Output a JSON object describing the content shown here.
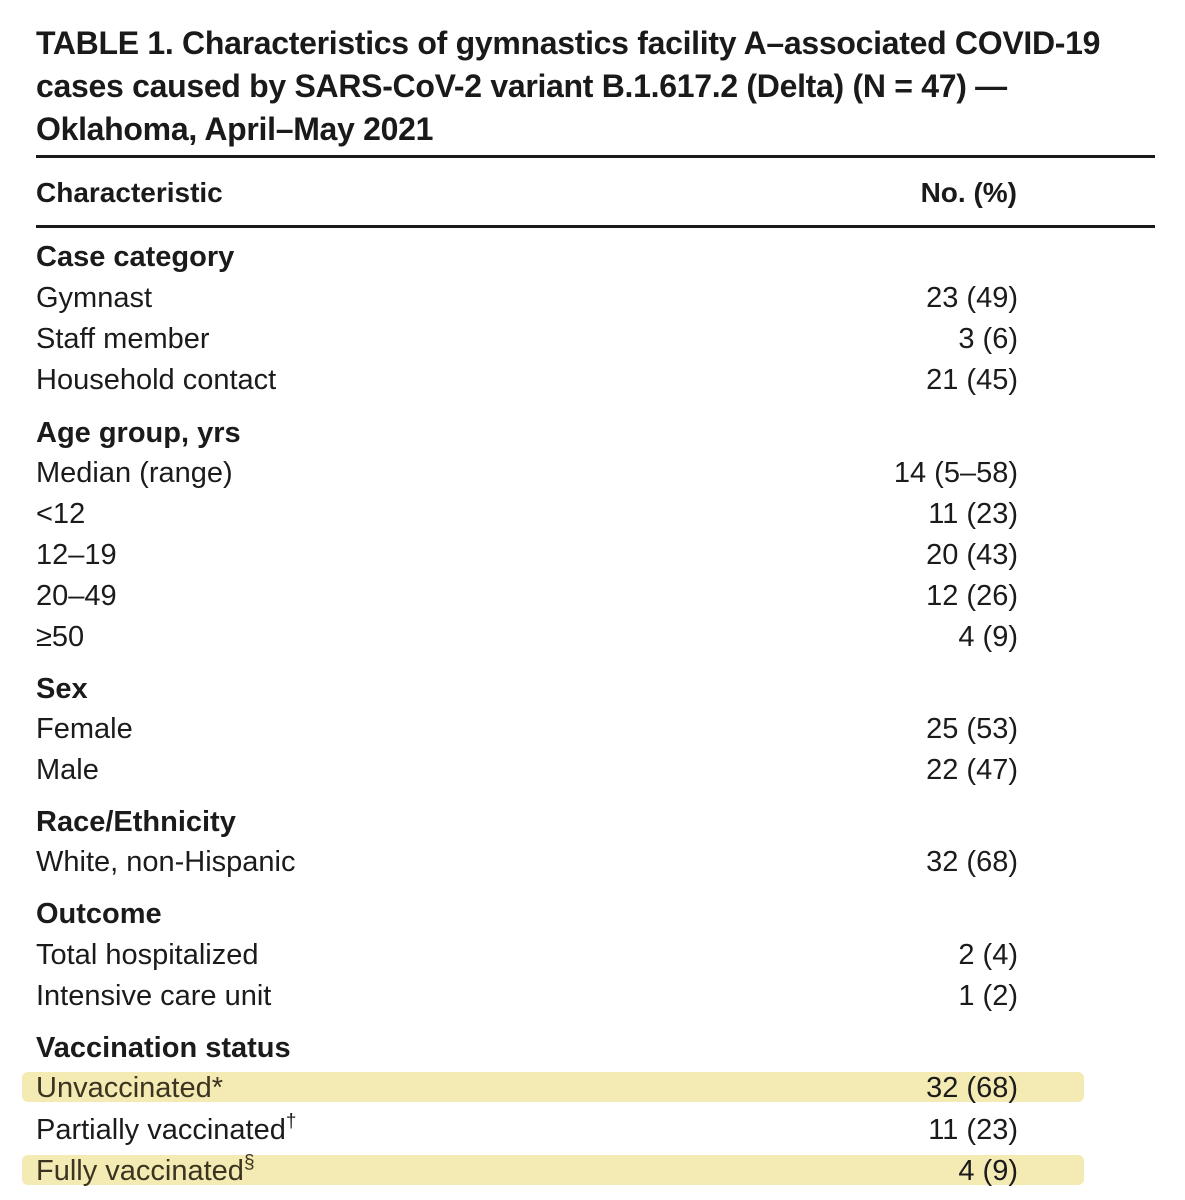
{
  "title": "TABLE 1. Characteristics of gymnastics facility A–associated COVID-19 cases caused by SARS-CoV-2 variant B.1.617.2 (Delta) (N = 47) — Oklahoma, April–May 2021",
  "columns": {
    "characteristic": "Characteristic",
    "count": "No. (%)"
  },
  "sections": {
    "case_category": {
      "heading": "Case category",
      "rows": [
        {
          "label": "Gymnast",
          "value": "23 (49)"
        },
        {
          "label": "Staff member",
          "value": "3 (6)"
        },
        {
          "label": "Household contact",
          "value": "21 (45)"
        }
      ]
    },
    "age_group": {
      "heading": "Age group, yrs",
      "rows": [
        {
          "label": "Median (range)",
          "value": "14 (5–58)"
        },
        {
          "label": "<12",
          "value": "11 (23)"
        },
        {
          "label": "12–19",
          "value": "20 (43)"
        },
        {
          "label": "20–49",
          "value": "12 (26)"
        },
        {
          "label": "≥50",
          "value": "4 (9)"
        }
      ]
    },
    "sex": {
      "heading": "Sex",
      "rows": [
        {
          "label": "Female",
          "value": "25 (53)"
        },
        {
          "label": "Male",
          "value": "22 (47)"
        }
      ]
    },
    "race": {
      "heading": "Race/Ethnicity",
      "rows": [
        {
          "label": "White, non-Hispanic",
          "value": "32 (68)"
        }
      ]
    },
    "outcome": {
      "heading": "Outcome",
      "rows": [
        {
          "label": "Total hospitalized",
          "value": "2 (4)"
        },
        {
          "label": "Intensive care unit",
          "value": "1 (2)"
        }
      ]
    },
    "vaccination": {
      "heading": "Vaccination status",
      "rows": [
        {
          "label": "Unvaccinated*",
          "value": "32 (68)",
          "highlighted": true
        },
        {
          "label": "Partially vaccinated",
          "footnote": "†",
          "value": "11 (23)"
        },
        {
          "label": "Fully vaccinated",
          "footnote": "§",
          "value": "4 (9)",
          "highlighted": true
        }
      ]
    }
  },
  "highlight_color": "#f2e6a6"
}
